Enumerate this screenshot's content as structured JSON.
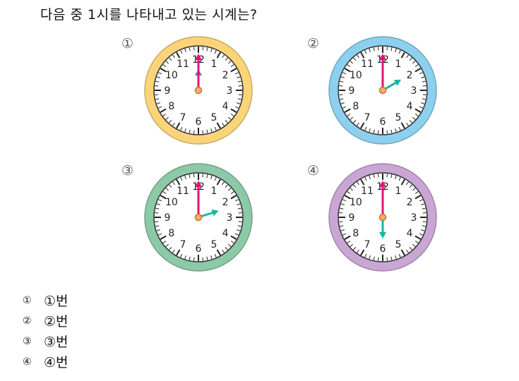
{
  "question": "다음 중 1시를 나타내고 있는 시계는?",
  "clocks": [
    {
      "number": "①",
      "rim_color": "#fbd47a",
      "minute_hand": 12,
      "hour_hand": 12,
      "hour_color": "#4a7fb5"
    },
    {
      "number": "②",
      "rim_color": "#8dd0ee",
      "minute_hand": 12,
      "hour_hand": 2,
      "hour_color": "#14b7a4"
    },
    {
      "number": "③",
      "rim_color": "#8cc9a7",
      "minute_hand": 12,
      "hour_hand": 2.4,
      "hour_color": "#14b7a4"
    },
    {
      "number": "④",
      "rim_color": "#c9a6d4",
      "minute_hand": 12,
      "hour_hand": 6,
      "hour_color": "#14b7a4"
    }
  ],
  "dial_numbers": [
    "12",
    "1",
    "2",
    "3",
    "4",
    "5",
    "6",
    "7",
    "8",
    "9",
    "10",
    "11"
  ],
  "options": [
    {
      "marker": "①",
      "label": "①번"
    },
    {
      "marker": "②",
      "label": "②번"
    },
    {
      "marker": "③",
      "label": "③번"
    },
    {
      "marker": "④",
      "label": "④번"
    }
  ]
}
